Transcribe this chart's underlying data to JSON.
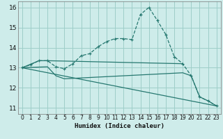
{
  "xlabel": "Humidex (Indice chaleur)",
  "xlim": [
    -0.5,
    23.5
  ],
  "ylim": [
    10.7,
    16.3
  ],
  "yticks": [
    11,
    12,
    13,
    14,
    15,
    16
  ],
  "xticks": [
    0,
    1,
    2,
    3,
    4,
    5,
    6,
    7,
    8,
    9,
    10,
    11,
    12,
    13,
    14,
    15,
    16,
    17,
    18,
    19,
    20,
    21,
    22,
    23
  ],
  "bg_color": "#ceecea",
  "line_color": "#267870",
  "grid_color": "#9ecec8",
  "lines": [
    {
      "x": [
        0,
        1,
        2,
        3,
        4,
        5,
        6,
        7,
        8,
        9,
        10,
        11,
        12,
        13,
        14,
        15,
        16,
        17,
        18,
        19,
        20,
        21,
        22,
        23
      ],
      "y": [
        13.0,
        13.15,
        13.35,
        13.35,
        13.05,
        12.95,
        13.2,
        13.6,
        13.7,
        14.05,
        14.3,
        14.45,
        14.45,
        14.4,
        15.65,
        16.0,
        15.35,
        14.65,
        13.55,
        13.2,
        12.6,
        11.55,
        11.35,
        11.1
      ],
      "marker": "+",
      "linestyle": "--",
      "linewidth": 0.9
    },
    {
      "x": [
        0,
        2,
        3,
        19
      ],
      "y": [
        13.0,
        13.35,
        13.35,
        13.2
      ],
      "marker": null,
      "linestyle": "-",
      "linewidth": 0.9
    },
    {
      "x": [
        0,
        23
      ],
      "y": [
        13.0,
        11.1
      ],
      "marker": null,
      "linestyle": "-",
      "linewidth": 0.9
    },
    {
      "x": [
        0,
        3,
        4,
        5,
        19,
        20,
        21,
        22,
        23
      ],
      "y": [
        13.0,
        13.05,
        12.6,
        12.45,
        12.75,
        12.6,
        11.55,
        11.35,
        11.1
      ],
      "marker": null,
      "linestyle": "-",
      "linewidth": 0.9
    }
  ]
}
